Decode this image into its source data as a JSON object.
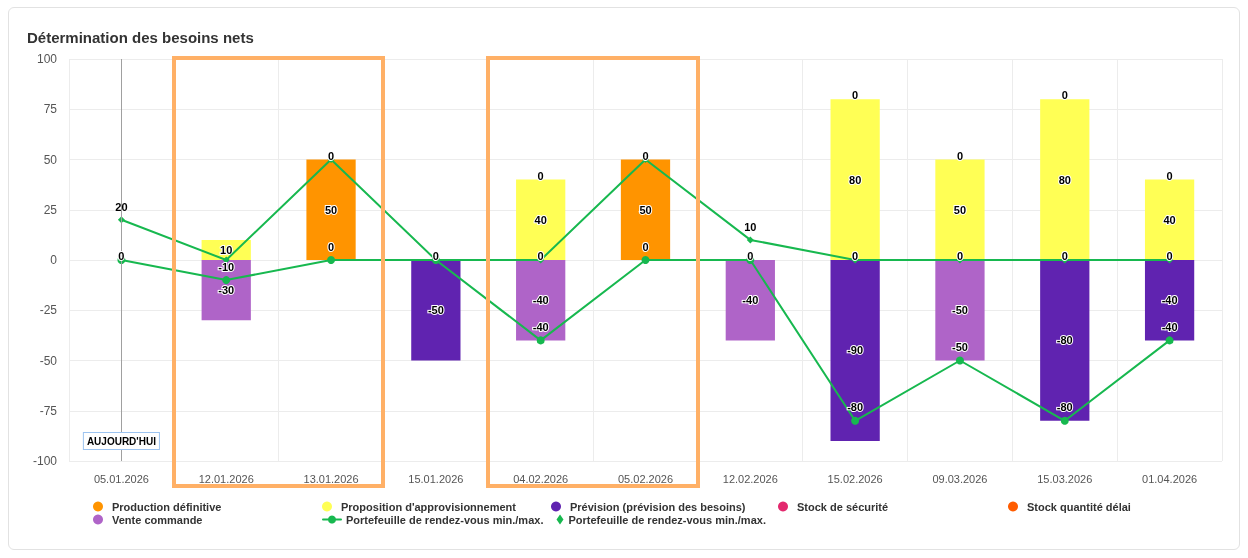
{
  "chart_data": {
    "type": "bar",
    "title": "Détermination des besoins nets",
    "categories": [
      "05.01.2026",
      "12.01.2026",
      "13.01.2026",
      "15.01.2026",
      "04.02.2026",
      "05.02.2026",
      "12.02.2026",
      "15.02.2026",
      "09.03.2026",
      "15.03.2026",
      "01.04.2026"
    ],
    "series": [
      {
        "name": "Production définitive",
        "color": "#ff9400",
        "values": [
          null,
          null,
          50,
          null,
          null,
          50,
          null,
          null,
          null,
          null,
          null
        ],
        "value_labels": [
          null,
          null,
          "50",
          null,
          null,
          "50",
          null,
          null,
          null,
          null,
          null
        ]
      },
      {
        "name": "Proposition d'approvisionnement",
        "color": "#ffff55",
        "values": [
          null,
          10,
          null,
          null,
          40,
          null,
          null,
          80,
          50,
          80,
          40
        ],
        "value_labels": [
          null,
          "10",
          null,
          null,
          "40",
          null,
          null,
          "80",
          "50",
          "80",
          "40"
        ]
      },
      {
        "name": "Prévision (prévision des besoins)",
        "color": "#6023b0",
        "values": [
          null,
          null,
          null,
          -50,
          null,
          null,
          null,
          -90,
          null,
          -80,
          -40
        ],
        "value_labels": [
          null,
          null,
          null,
          "-50",
          null,
          null,
          null,
          "-90",
          null,
          "-80",
          "-40"
        ]
      },
      {
        "name": "Stock de sécurité",
        "color": "#e3296e",
        "values": [
          null,
          null,
          null,
          null,
          null,
          null,
          null,
          null,
          null,
          null,
          null
        ]
      },
      {
        "name": "Stock quantité délai",
        "color": "#ff5c00",
        "values": [
          null,
          null,
          null,
          null,
          null,
          null,
          null,
          null,
          null,
          null,
          null
        ]
      },
      {
        "name": "Vente commande",
        "color": "#af64c8",
        "values": [
          null,
          -30,
          null,
          null,
          -40,
          null,
          -40,
          null,
          -50,
          null,
          null
        ],
        "value_labels": [
          null,
          "-30",
          null,
          null,
          "-40",
          null,
          "-40",
          null,
          "-50",
          null,
          null
        ]
      },
      {
        "name": "Portefeuille de rendez-vous min./max.",
        "type": "line",
        "color": "#17b84f",
        "marker": "circle",
        "values": [
          0,
          -10,
          0,
          0,
          -40,
          0,
          0,
          -80,
          -50,
          -80,
          -40
        ],
        "value_labels": [
          null,
          "-10",
          "0",
          null,
          "-40",
          "0",
          null,
          "-80",
          "-50",
          "-80",
          "-40"
        ]
      },
      {
        "name": "Portefeuille de rendez-vous min./max.",
        "type": "line",
        "color": "#17b84f",
        "marker": "diamond",
        "values": [
          20,
          0,
          50,
          0,
          0,
          50,
          10,
          0,
          0,
          0,
          0
        ],
        "value_labels": [
          "20",
          null,
          null,
          null,
          null,
          null,
          "10",
          null,
          null,
          null,
          null
        ]
      }
    ],
    "stacked": true,
    "ylim": [
      -100,
      100
    ],
    "yticks": [
      -100,
      -75,
      -50,
      -25,
      0,
      25,
      50,
      75,
      100
    ],
    "grid": true,
    "legend": "bottom",
    "ref_lines": [
      {
        "axis": "x",
        "value": "05.01.2026",
        "label": "AUJOURD'HUI",
        "color": "#a0a0a0"
      }
    ],
    "annotations": [
      {
        "text": "0",
        "x": "05.01.2026",
        "y": 0
      },
      {
        "text": "0",
        "x": "13.01.2026",
        "y": 50
      },
      {
        "text": "0",
        "x": "15.01.2026",
        "y": 0
      },
      {
        "text": "0",
        "x": "04.02.2026",
        "y": 40
      },
      {
        "text": "0",
        "x": "04.02.2026",
        "y": 0
      },
      {
        "text": "0",
        "x": "05.02.2026",
        "y": 50
      },
      {
        "text": "0",
        "x": "12.02.2026",
        "y": 0
      },
      {
        "text": "0",
        "x": "15.02.2026",
        "y": 80
      },
      {
        "text": "0",
        "x": "15.02.2026",
        "y": 0
      },
      {
        "text": "0",
        "x": "09.03.2026",
        "y": 50
      },
      {
        "text": "0",
        "x": "09.03.2026",
        "y": 0
      },
      {
        "text": "0",
        "x": "15.03.2026",
        "y": 80
      },
      {
        "text": "0",
        "x": "15.03.2026",
        "y": 0
      },
      {
        "text": "0",
        "x": "01.04.2026",
        "y": 40
      },
      {
        "text": "0",
        "x": "01.04.2026",
        "y": 0
      }
    ]
  }
}
